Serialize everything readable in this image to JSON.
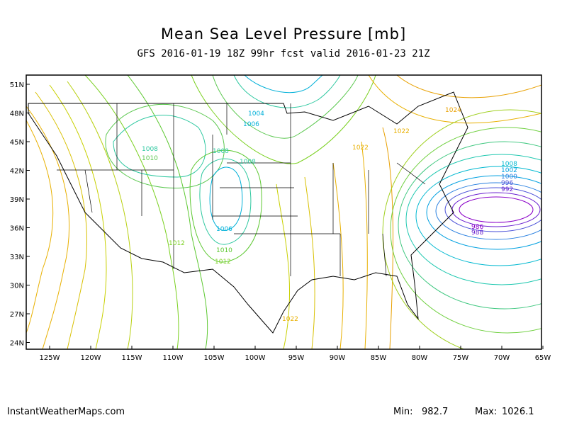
{
  "header": {
    "title": "Mean Sea Level Pressure [mb]",
    "subtitle": "GFS 2016-01-19 18Z 99hr fcst valid 2016-01-23 21Z"
  },
  "axes": {
    "lat_ticks": [
      "51N",
      "48N",
      "45N",
      "42N",
      "39N",
      "36N",
      "33N",
      "30N",
      "27N",
      "24N"
    ],
    "lon_ticks": [
      "125W",
      "120W",
      "115W",
      "110W",
      "105W",
      "100W",
      "95W",
      "90W",
      "85W",
      "80W",
      "75W",
      "70W",
      "65W"
    ]
  },
  "contour_labels": {
    "l1004": "1004",
    "l1006a": "1006",
    "l1006b": "1006",
    "l1008a": "1008",
    "l1008b": "1008",
    "l1008c": "1008",
    "l1010a": "1010",
    "l1010b": "1010",
    "l1012a": "1012",
    "l1012b": "1012",
    "l1022a": "1022",
    "l1022b": "1022",
    "l1022c": "1022",
    "l1024": "1024",
    "l986": "986",
    "l988": "988",
    "le1": "1008",
    "le2": "1002",
    "le3": "1000",
    "le4": "996",
    "le5": "992"
  },
  "colors": {
    "low": "#8a00c8",
    "mid_low": "#00b0d8",
    "mid": "#2ec8a0",
    "mid_high": "#7ad020",
    "high": "#e8b000"
  },
  "footer": {
    "source": "InstantWeatherMaps.com",
    "min_label": "Min:",
    "min_value": "982.7",
    "max_label": "Max:",
    "max_value": "1026.1"
  }
}
